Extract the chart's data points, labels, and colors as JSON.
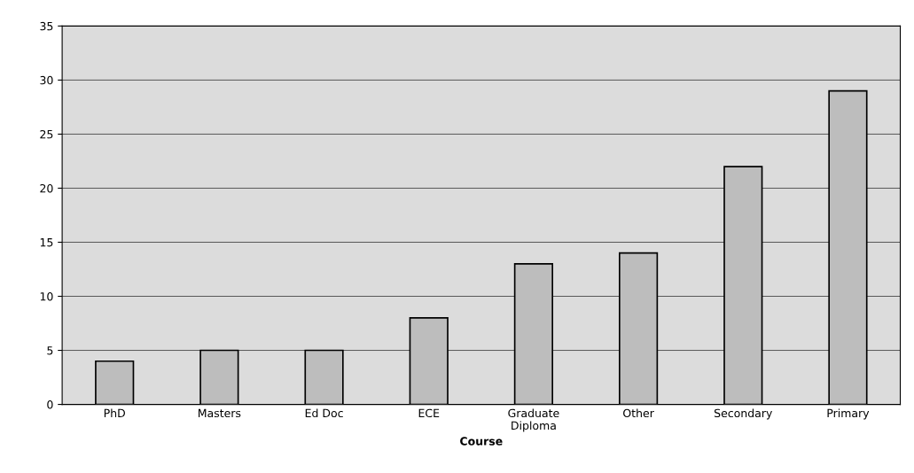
{
  "chart_data": {
    "type": "bar",
    "xlabel": "Course",
    "categories": [
      "PhD",
      "Masters",
      "Ed Doc",
      "ECE",
      "Graduate\nDiploma",
      "Other",
      "Secondary",
      "Primary"
    ],
    "values": [
      4,
      5,
      5,
      8,
      13,
      14,
      22,
      29
    ],
    "color": "#bdbdbd",
    "ylim": [
      0,
      35
    ],
    "yticks": [
      0,
      5,
      10,
      15,
      20,
      25,
      30,
      35
    ],
    "grid": "y"
  }
}
